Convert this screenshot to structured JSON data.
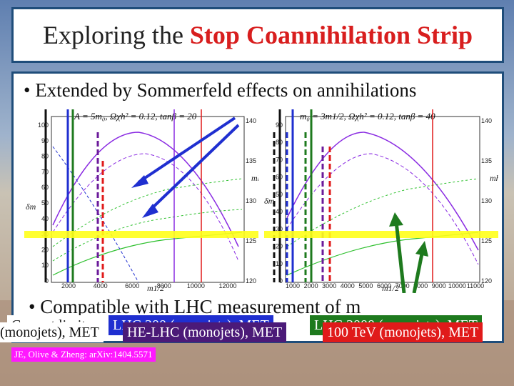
{
  "slide": {
    "title_prefix": "Exploring the ",
    "title_highlight": "Stop Coannihilation Strip",
    "bullet1": "• Extended by Sommerfeld effects on annihilations",
    "bullet2": "• Compatible with LHC measurement of m"
  },
  "left_plot": {
    "header": "A = 5m₀, Ωχh² = 0.12, tanβ = 20",
    "xlabel": "m1/2",
    "ylabel_left": "δm",
    "ylabel_right": "mh",
    "x_ticks": [
      "2000",
      "4000",
      "6000",
      "8000",
      "10000",
      "12000"
    ],
    "y_ticks": [
      "0",
      "10",
      "20",
      "30",
      "40",
      "50",
      "60",
      "70",
      "80",
      "90",
      "100"
    ],
    "y2_ticks": [
      "120",
      "125",
      "130",
      "135",
      "140"
    ]
  },
  "right_plot": {
    "header": "m₀ = 3m1/2, Ωχh² = 0.12, tanβ = 40",
    "xlabel": "m1/2",
    "ylabel_left": "δm",
    "ylabel_right": "mh",
    "x_ticks": [
      "1000",
      "2000",
      "3000",
      "4000",
      "5000",
      "6000",
      "7000",
      "8000",
      "9000",
      "10000",
      "11000"
    ],
    "y_ticks": [
      "0",
      "10",
      "20",
      "30",
      "40",
      "50",
      "60",
      "70",
      "80",
      "90"
    ],
    "y2_ticks": [
      "120",
      "125",
      "130",
      "135",
      "140"
    ]
  },
  "legend": {
    "current": "Current limits",
    "lhc300": "LHC 300 (monojets), MET",
    "lhc3000": "LHC 3000 (monojets), MET",
    "partial": "(monojets), MET",
    "helhc": "HE-LHC (monojets), MET",
    "tev100": "100 TeV (monojets), MET"
  },
  "citation": "JE, Olive & Zheng: arXiv:1404.5571",
  "colors": {
    "title_border": "#1f4d7a",
    "title_highlight": "#d81e1e",
    "legend_current": "#111111",
    "legend_lhc300": "#1f2fd0",
    "legend_lhc3000": "#1e7a1e",
    "legend_partial": "#7a1e7a",
    "legend_helhc": "#4b1a78",
    "legend_tev100": "#e01a1a",
    "citation": "#ff19ff"
  }
}
